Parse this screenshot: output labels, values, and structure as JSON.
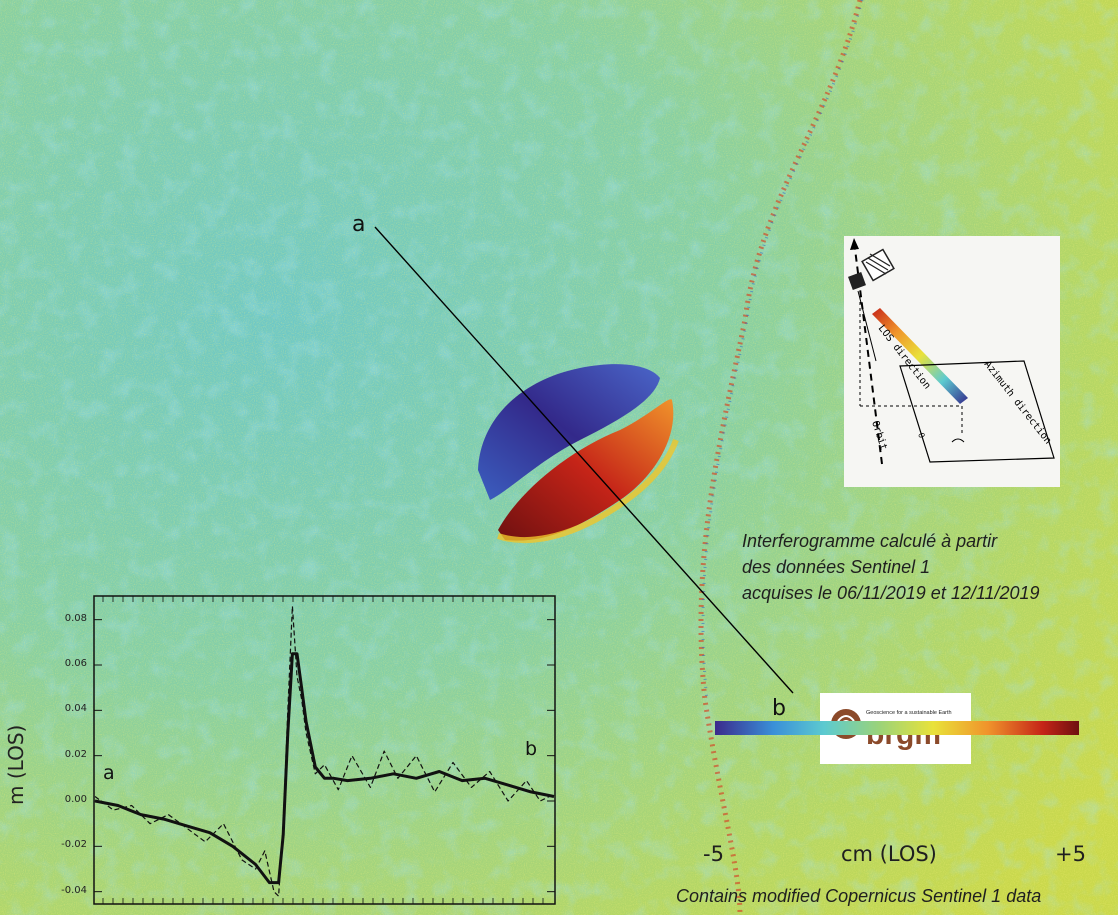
{
  "profile": {
    "start_label": "a",
    "end_label": "b"
  },
  "caption": {
    "line1": "Interferogramme calculé à partir",
    "line2": "des données Sentinel 1",
    "line3": "acquises le 06/11/2019 et 12/11/2019"
  },
  "credit": "Contains modified Copernicus Sentinel 1 data",
  "colorbar": {
    "min_label": "-5",
    "unit_label": "cm (LOS)",
    "max_label": "+5",
    "colors": [
      "#3b2a8c",
      "#3a8fd8",
      "#5ccad0",
      "#9ad37a",
      "#e9e23a",
      "#f0932b",
      "#c52418",
      "#6e1010"
    ]
  },
  "logo": {
    "tagline": "Geoscience for a sustainable Earth",
    "name": "brgm",
    "accent_color": "#8b4a2a"
  },
  "geometry_inset": {
    "los_label": "LOS direction",
    "azimuth_label": "Azimuth direction",
    "orbit_label": "Orbit",
    "theta_label": "θ",
    "icon": "satellite-icon"
  },
  "chart_data": {
    "type": "line",
    "ylabel": "m (LOS)",
    "xlabel": "",
    "ylim": [
      -0.045,
      0.09
    ],
    "yticks": [
      "0.08",
      "0.06",
      "0.04",
      "0.02",
      "0.00",
      "-0.02",
      "-0.04"
    ],
    "point_labels": [
      "a",
      "b"
    ],
    "series": [
      {
        "style": "solid-thick",
        "x": [
          0,
          0.05,
          0.1,
          0.15,
          0.2,
          0.25,
          0.3,
          0.35,
          0.38,
          0.4,
          0.41,
          0.42,
          0.43,
          0.44,
          0.45,
          0.46,
          0.48,
          0.5,
          0.52,
          0.55,
          0.6,
          0.65,
          0.7,
          0.75,
          0.8,
          0.85,
          0.9,
          0.95,
          1.0
        ],
        "values": [
          0.0,
          -0.002,
          -0.006,
          -0.008,
          -0.011,
          -0.014,
          -0.02,
          -0.028,
          -0.036,
          -0.036,
          -0.015,
          0.03,
          0.065,
          0.065,
          0.05,
          0.035,
          0.015,
          0.01,
          0.01,
          0.009,
          0.01,
          0.012,
          0.01,
          0.013,
          0.009,
          0.01,
          0.007,
          0.004,
          0.002
        ]
      },
      {
        "style": "dashed-noisy",
        "x": [
          0,
          0.04,
          0.08,
          0.12,
          0.16,
          0.2,
          0.24,
          0.28,
          0.32,
          0.35,
          0.37,
          0.39,
          0.4,
          0.41,
          0.42,
          0.43,
          0.44,
          0.45,
          0.46,
          0.48,
          0.5,
          0.53,
          0.56,
          0.6,
          0.63,
          0.66,
          0.7,
          0.74,
          0.78,
          0.82,
          0.86,
          0.9,
          0.94,
          0.97,
          1.0
        ],
        "values": [
          0.002,
          -0.004,
          -0.002,
          -0.01,
          -0.006,
          -0.012,
          -0.018,
          -0.01,
          -0.026,
          -0.03,
          -0.022,
          -0.04,
          -0.042,
          -0.01,
          0.04,
          0.086,
          0.055,
          0.045,
          0.03,
          0.012,
          0.016,
          0.005,
          0.02,
          0.006,
          0.022,
          0.01,
          0.02,
          0.004,
          0.017,
          0.006,
          0.013,
          0.0,
          0.009,
          0.0,
          0.003
        ]
      }
    ]
  }
}
